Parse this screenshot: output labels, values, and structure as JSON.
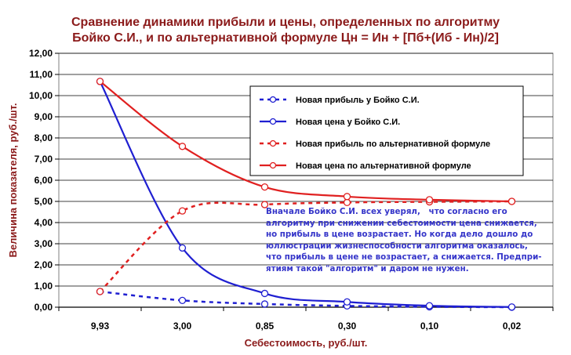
{
  "chart_data": {
    "type": "line",
    "title": [
      "Сравнение динамики прибыли и цены, определенных по алгоритму",
      "Бойко С.И., и по альтернативной формуле Цн = Ин + [Пб+(Иб - Ин)/2]"
    ],
    "xlabel": "Себестоимость, руб./шт.",
    "ylabel": "Величина показателя, руб./шт.",
    "categories": [
      "9,93",
      "3,00",
      "0,85",
      "0,30",
      "0,10",
      "0,02"
    ],
    "ylim": [
      0,
      12
    ],
    "yticks": [
      "0,00",
      "1,00",
      "2,00",
      "3,00",
      "4,00",
      "5,00",
      "6,00",
      "7,00",
      "8,00",
      "9,00",
      "10,00",
      "11,00",
      "12,00"
    ],
    "grid": true,
    "legend_position": "top-right",
    "series": [
      {
        "name": "Новая прибыль у Бойко С.И.",
        "values": [
          0.74,
          0.32,
          0.15,
          0.06,
          0.02,
          0.0
        ],
        "color": "#1f1fd1",
        "dash": "dotted",
        "markers": true
      },
      {
        "name": "Новая цена у Бойко С.И.",
        "values": [
          10.67,
          2.8,
          0.65,
          0.25,
          0.07,
          0.01
        ],
        "color": "#1f1fd1",
        "dash": "solid",
        "markers": true
      },
      {
        "name": "Новая прибыль по альтернативной формуле",
        "values": [
          0.74,
          4.55,
          4.85,
          4.95,
          4.98,
          5.0
        ],
        "color": "#e02020",
        "dash": "dotted",
        "markers": true
      },
      {
        "name": "Новая цена по альтернативной формуле",
        "values": [
          10.67,
          7.6,
          5.68,
          5.23,
          5.08,
          5.0
        ],
        "color": "#e02020",
        "dash": "solid",
        "markers": true
      }
    ],
    "annotation": "Вначале Бойко С.И. всех уверял,   что согласно его\nалгоритму при снижении себестоимости цена снижается,\nно прибыль в цене возрастает. Но когда дело дошло до\nюллюстрации жизнеспособности алгоритма оказалось,\nчто прибыль в цене не возрастает, а снижается. Предпри-\nятиям такой \"алгоритм\" и даром не нужен."
  }
}
